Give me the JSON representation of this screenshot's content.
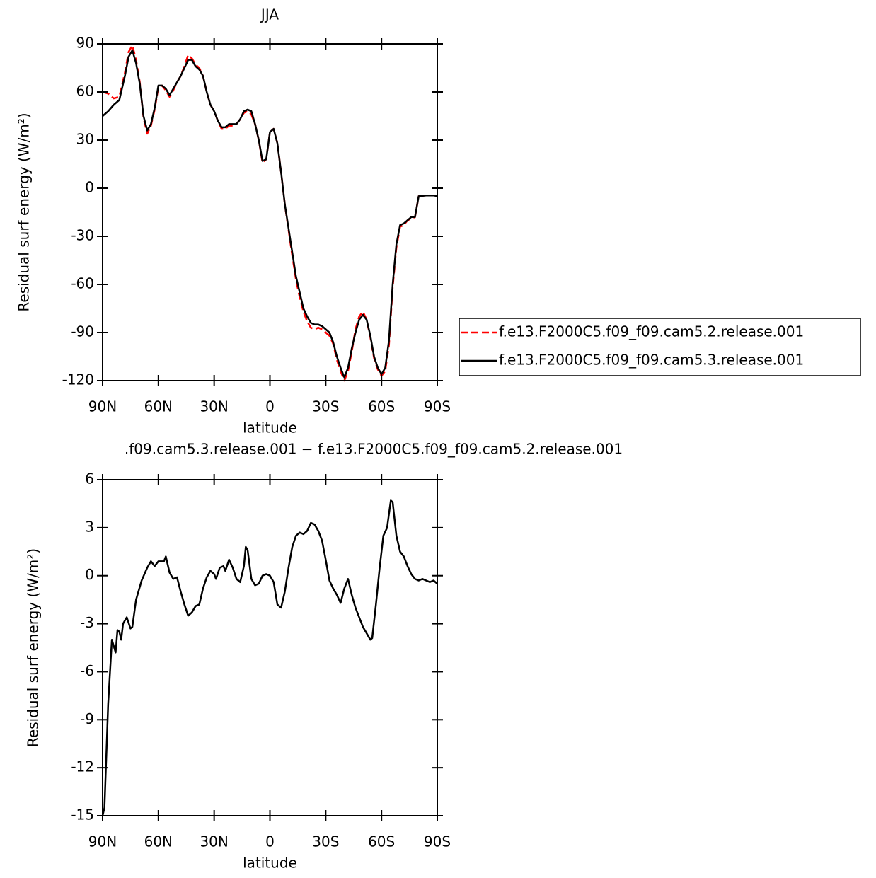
{
  "chart_data": [
    {
      "type": "line",
      "title": "JJA",
      "xlabel": "latitude",
      "ylabel": "Residual surf energy (W/m²)",
      "xlim": [
        90,
        -90
      ],
      "xticks": [
        {
          "value": 90,
          "label": "90N"
        },
        {
          "value": 60,
          "label": "60N"
        },
        {
          "value": 30,
          "label": "30N"
        },
        0,
        {
          "value": -30,
          "label": "30S"
        },
        {
          "value": -60,
          "label": "60S"
        },
        {
          "value": -90,
          "label": "90S"
        }
      ],
      "ylim": [
        -120,
        90
      ],
      "yticks": [
        -120,
        -90,
        -60,
        -30,
        0,
        30,
        60,
        90
      ],
      "legend": "right",
      "x": [
        90,
        87,
        84,
        81,
        78,
        76,
        74,
        72,
        70,
        68,
        66,
        64,
        62,
        60,
        58,
        56,
        54,
        52,
        50,
        48,
        46,
        44,
        42,
        40,
        38,
        36,
        34,
        32,
        30,
        28,
        26,
        24,
        22,
        20,
        18,
        16,
        14,
        12,
        10,
        8,
        6,
        4,
        2,
        0,
        -2,
        -4,
        -6,
        -8,
        -10,
        -12,
        -14,
        -16,
        -18,
        -20,
        -22,
        -24,
        -26,
        -28,
        -30,
        -32,
        -34,
        -36,
        -38,
        -40,
        -42,
        -44,
        -46,
        -48,
        -50,
        -52,
        -54,
        -56,
        -58,
        -60,
        -62,
        -64,
        -66,
        -68,
        -70,
        -72,
        -74,
        -76,
        -78,
        -80,
        -84,
        -88,
        -90
      ],
      "series": [
        {
          "name": "f.e13.F2000C5.f09_f09.cam5.2.release.001",
          "color": "#ff0000",
          "linestyle": "dashed",
          "values": [
            60,
            59,
            56,
            57,
            72,
            85,
            89,
            80,
            66,
            44,
            34,
            39,
            49,
            63,
            64,
            61,
            57,
            61,
            66,
            70,
            76,
            83,
            81,
            77,
            75,
            70,
            60,
            52,
            48,
            42,
            37,
            37,
            39,
            39,
            40,
            43,
            47,
            48,
            46,
            40,
            30,
            16,
            18,
            35,
            37,
            28,
            10,
            -10,
            -26,
            -42,
            -57,
            -68,
            -77,
            -83,
            -87,
            -88,
            -87,
            -88,
            -90,
            -92,
            -97,
            -107,
            -114,
            -120,
            -114,
            -102,
            -88,
            -80,
            -77,
            -82,
            -93,
            -106,
            -113,
            -117,
            -114,
            -98,
            -62,
            -37,
            -24,
            -23,
            -20,
            -19,
            -18,
            -5,
            -4.5,
            -4.5,
            -5
          ]
        },
        {
          "name": "f.e13.F2000C5.f09_f09.cam5.3.release.001",
          "color": "#000000",
          "linestyle": "solid",
          "values": [
            45,
            48,
            52,
            55,
            70,
            82,
            86,
            78,
            65,
            45,
            36,
            40,
            50,
            64,
            64,
            62,
            58,
            62,
            66,
            70,
            75,
            80,
            80,
            76,
            74,
            70,
            60,
            52,
            48,
            42,
            38,
            38,
            40,
            40,
            40,
            43,
            48,
            49,
            48,
            40,
            30,
            17,
            18,
            35,
            37,
            28,
            10,
            -10,
            -25,
            -40,
            -55,
            -65,
            -75,
            -80,
            -84,
            -85,
            -85,
            -86,
            -88,
            -90,
            -96,
            -105,
            -112,
            -118,
            -112,
            -100,
            -90,
            -82,
            -79,
            -82,
            -92,
            -105,
            -112,
            -116,
            -112,
            -95,
            -60,
            -35,
            -23,
            -22,
            -20,
            -18,
            -18,
            -5,
            -4.5,
            -4.5,
            -5
          ]
        }
      ]
    },
    {
      "type": "line",
      "title": ".f09.cam5.3.release.001 − f.e13.F2000C5.f09_f09.cam5.2.release.001",
      "xlabel": "latitude",
      "ylabel": "Residual surf energy (W/m²)",
      "xlim": [
        90,
        -90
      ],
      "xticks": [
        {
          "value": 90,
          "label": "90N"
        },
        {
          "value": 60,
          "label": "60N"
        },
        {
          "value": 30,
          "label": "30N"
        },
        0,
        {
          "value": -30,
          "label": "30S"
        },
        {
          "value": -60,
          "label": "60S"
        },
        {
          "value": -90,
          "label": "90S"
        }
      ],
      "ylim": [
        -15,
        6
      ],
      "yticks": [
        -15,
        -12,
        -9,
        -6,
        -3,
        0,
        3,
        6
      ],
      "x": [
        90,
        89,
        87,
        85,
        83,
        82,
        81,
        80,
        79,
        77,
        75,
        74,
        72,
        69,
        66,
        64,
        62,
        60,
        57,
        56,
        54,
        52,
        50,
        48,
        46,
        44,
        42,
        40,
        38,
        36,
        34,
        32,
        30,
        29,
        27,
        25,
        24,
        22,
        20,
        18,
        16,
        14,
        13,
        12,
        10,
        8,
        6,
        4,
        2,
        0,
        -2,
        -4,
        -6,
        -8,
        -10,
        -12,
        -14,
        -16,
        -18,
        -20,
        -22,
        -24,
        -26,
        -28,
        -30,
        -32,
        -34,
        -36,
        -38,
        -40,
        -42,
        -44,
        -46,
        -48,
        -50,
        -52,
        -54,
        -55,
        -57,
        -59,
        -61,
        -63,
        -65,
        -66,
        -68,
        -70,
        -72,
        -74,
        -76,
        -78,
        -80,
        -82,
        -84,
        -86,
        -88,
        -90
      ],
      "series": [
        {
          "color": "#000000",
          "linestyle": "solid",
          "values": [
            -15,
            -14.5,
            -8,
            -4,
            -4.8,
            -3.4,
            -3.5,
            -4,
            -3,
            -2.6,
            -3.3,
            -3.2,
            -1.5,
            -0.3,
            0.5,
            0.9,
            0.6,
            0.9,
            0.9,
            1.2,
            0.2,
            -0.2,
            -0.1,
            -1,
            -1.8,
            -2.5,
            -2.3,
            -1.9,
            -1.8,
            -0.8,
            -0.1,
            0.3,
            0.1,
            -0.2,
            0.5,
            0.6,
            0.3,
            1,
            0.5,
            -0.2,
            -0.4,
            0.6,
            1.8,
            1.6,
            -0.2,
            -0.6,
            -0.5,
            0,
            0.1,
            0,
            -0.4,
            -1.8,
            -2,
            -1,
            0.5,
            1.8,
            2.5,
            2.7,
            2.6,
            2.8,
            3.3,
            3.2,
            2.8,
            2.2,
            1,
            -0.3,
            -0.8,
            -1.2,
            -1.7,
            -0.8,
            -0.2,
            -1.2,
            -2,
            -2.6,
            -3.2,
            -3.6,
            -4,
            -3.9,
            -1.8,
            0.5,
            2.5,
            3,
            4.7,
            4.6,
            2.5,
            1.5,
            1.2,
            0.6,
            0.1,
            -0.2,
            -0.3,
            -0.2,
            -0.3,
            -0.4,
            -0.3,
            -0.5
          ]
        }
      ]
    }
  ]
}
